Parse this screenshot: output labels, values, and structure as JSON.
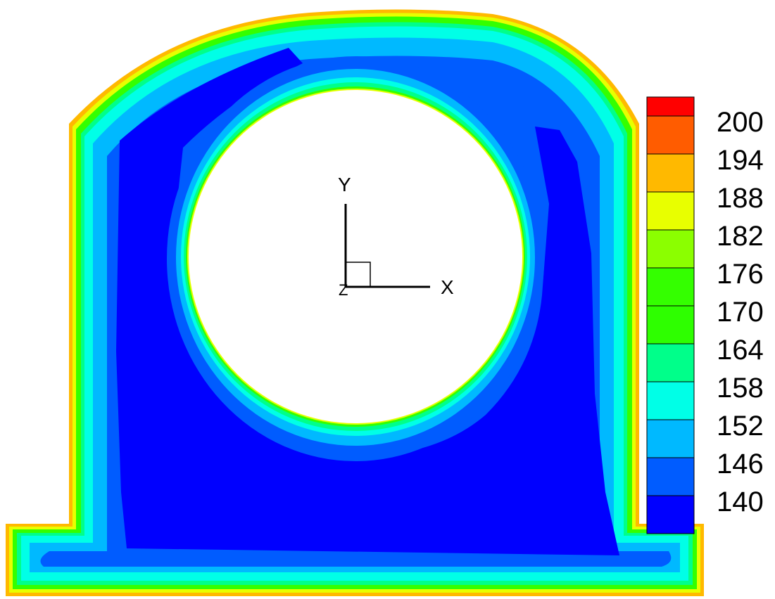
{
  "chart_data": {
    "type": "heatmap",
    "title": "",
    "legend": {
      "placement": "right",
      "levels": [
        {
          "value": 140,
          "color": "#0000ff"
        },
        {
          "value": 146,
          "color": "#005cff"
        },
        {
          "value": 152,
          "color": "#00b9ff"
        },
        {
          "value": 158,
          "color": "#00ffe7"
        },
        {
          "value": 164,
          "color": "#00ff8a"
        },
        {
          "value": 170,
          "color": "#2eff00"
        },
        {
          "value": 176,
          "color": "#34ff00"
        },
        {
          "value": 182,
          "color": "#8bff00"
        },
        {
          "value": 188,
          "color": "#e8ff00"
        },
        {
          "value": 194,
          "color": "#ffb900"
        },
        {
          "value": 200,
          "color": "#ff5c00"
        }
      ],
      "top_color": "#ff0000",
      "tick_labels": [
        "200",
        "194",
        "188",
        "182",
        "176",
        "170",
        "164",
        "158",
        "152",
        "146",
        "140"
      ]
    },
    "triad": {
      "x_label": "X",
      "y_label": "Y",
      "z_label": "Z"
    }
  }
}
